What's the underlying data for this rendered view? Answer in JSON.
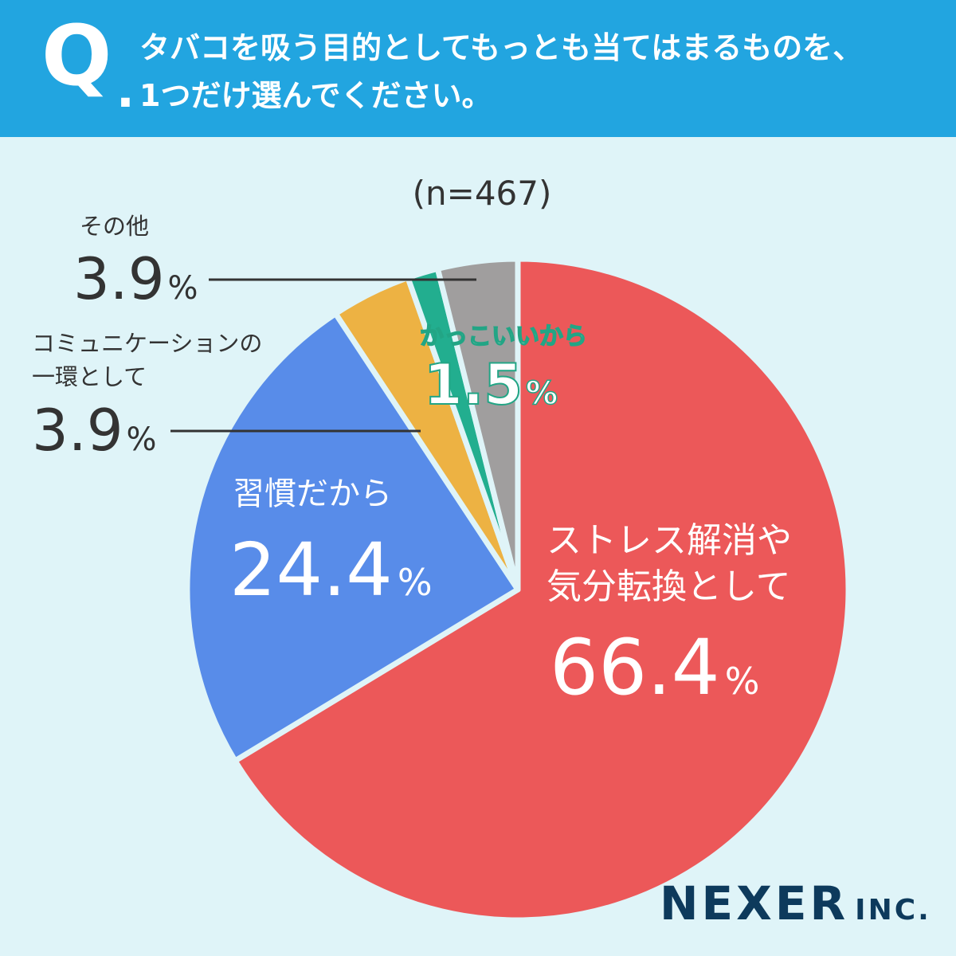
{
  "header": {
    "q_mark": "Q",
    "q_dot": ".",
    "question_line1": "タバコを吸う目的としてもっとも当てはまるものを、",
    "question_line2": "1つだけ選んでください。"
  },
  "sample_size": "(n=467)",
  "labels": {
    "stress": {
      "line1": "ストレス解消や",
      "line2": "気分転換として",
      "value": "66.4",
      "unit": "%"
    },
    "shukan": {
      "name": "習慣だから",
      "value": "24.4",
      "unit": "%"
    },
    "comm": {
      "line1": "コミュニケーションの",
      "line2": "一環として",
      "value": "3.9",
      "unit": "%"
    },
    "kakko": {
      "name": "かっこいいから",
      "value": "1.5",
      "unit": "%"
    },
    "sonota": {
      "name": "その他",
      "value": "3.9",
      "unit": "%"
    }
  },
  "brand": {
    "main": "NEXER",
    "suffix": "INC."
  },
  "colors": {
    "header_bg": "#22a5e0",
    "background": "#dff4f8",
    "separator": "#dff4f8",
    "leader_line": "#333333"
  },
  "chart_data": {
    "type": "pie",
    "start": "12 o'clock, clockwise",
    "slices": [
      {
        "label": "ストレス解消や気分転換として",
        "value": 66.4,
        "color": "#ec5859"
      },
      {
        "label": "習慣だから",
        "value": 24.4,
        "color": "#588ce9"
      },
      {
        "label": "コミュニケーションの一環として",
        "value": 3.9,
        "color": "#edb243"
      },
      {
        "label": "かっこいいから",
        "value": 1.5,
        "color": "#22ae8f"
      },
      {
        "label": "その他",
        "value": 3.9,
        "color": "#a09e9e"
      }
    ]
  }
}
